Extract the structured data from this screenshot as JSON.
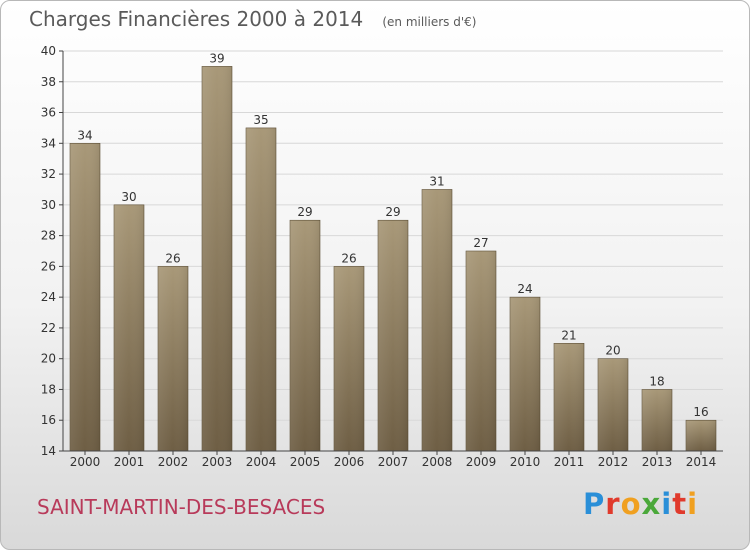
{
  "header": {
    "title": "Charges Financières 2000 à 2014",
    "subtitle": "(en milliers d'€)"
  },
  "footer": {
    "city": "SAINT-MARTIN-DES-BESACES",
    "logo_letters": [
      "P",
      "r",
      "o",
      "x",
      "i",
      "t",
      "i"
    ],
    "logo_colors": [
      "#2a8fd8",
      "#e03a2c",
      "#f0a020",
      "#4aa83a",
      "#2a8fd8",
      "#e03a2c",
      "#f0a020"
    ]
  },
  "colors": {
    "bar_top": "#a89878",
    "bar_bottom": "#6e5e44",
    "grid": "#d8d8d8",
    "axis": "#444444",
    "text": "#333333"
  },
  "chart_data": {
    "type": "bar",
    "title": "Charges Financières 2000 à 2014",
    "subtitle": "(en milliers d'€)",
    "categories": [
      "2000",
      "2001",
      "2002",
      "2003",
      "2004",
      "2005",
      "2006",
      "2007",
      "2008",
      "2009",
      "2010",
      "2011",
      "2012",
      "2013",
      "2014"
    ],
    "values": [
      34,
      30,
      26,
      39,
      35,
      29,
      26,
      29,
      31,
      27,
      24,
      21,
      20,
      18,
      16
    ],
    "ylim": [
      14,
      40
    ],
    "yticks": [
      14,
      16,
      18,
      20,
      22,
      24,
      26,
      28,
      30,
      32,
      34,
      36,
      38,
      40
    ],
    "grid": true,
    "data_labels": true
  }
}
